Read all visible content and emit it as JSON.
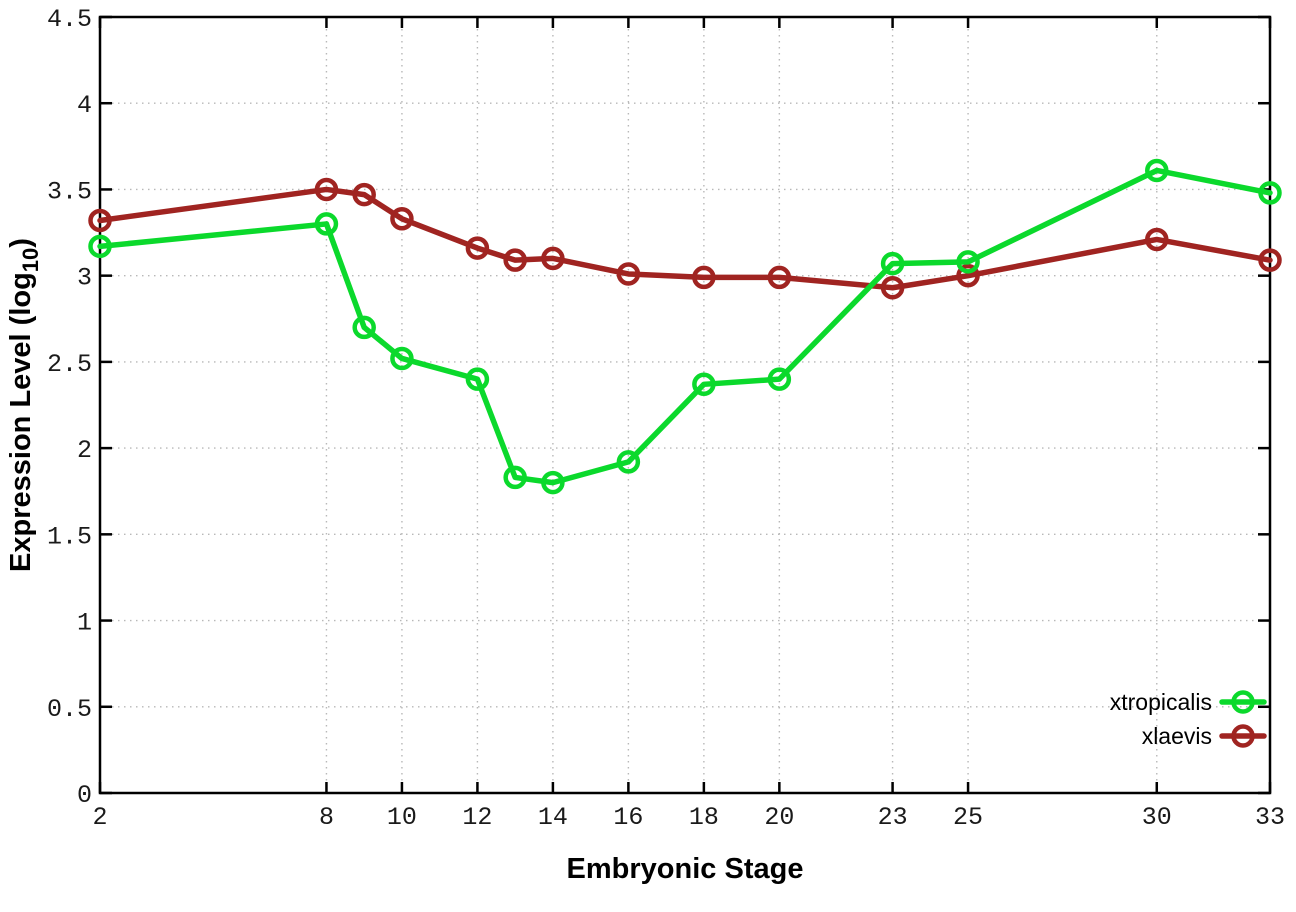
{
  "chart_data": {
    "type": "line",
    "title": "",
    "xlabel": "Embryonic Stage",
    "ylabel": {
      "prefix": "Expression Level (log",
      "subscript": "10",
      "suffix": ")"
    },
    "xlim": [
      2,
      33
    ],
    "ylim": [
      0,
      4.5
    ],
    "xticks": [
      2,
      8,
      10,
      12,
      14,
      16,
      18,
      20,
      23,
      25,
      30,
      33
    ],
    "yticks": [
      0,
      0.5,
      1,
      1.5,
      2,
      2.5,
      3,
      3.5,
      4,
      4.5
    ],
    "ytick_labels": [
      "0",
      "0.5",
      "1",
      "1.5",
      "2",
      "2.5",
      "3",
      "3.5",
      "4",
      "4.5"
    ],
    "grid": true,
    "legend_position": "inside-bottom-right",
    "marker": "open-circle",
    "x": [
      2,
      8,
      9,
      10,
      12,
      13,
      14,
      16,
      18,
      20,
      23,
      25,
      30,
      33
    ],
    "series": [
      {
        "name": "xtropicalis",
        "color": "#0bd92c",
        "values": [
          3.17,
          3.3,
          2.7,
          2.52,
          2.4,
          1.83,
          1.8,
          1.92,
          2.37,
          2.4,
          3.07,
          3.08,
          3.61,
          3.48
        ]
      },
      {
        "name": "xlaevis",
        "color": "#a02421",
        "values": [
          3.32,
          3.5,
          3.47,
          3.33,
          3.16,
          3.09,
          3.1,
          3.01,
          2.99,
          2.99,
          2.93,
          3.0,
          3.21,
          3.09
        ]
      }
    ],
    "colors": {
      "border": "#000000",
      "grid": "#b8b8b8",
      "background": "#ffffff",
      "text": "#000000"
    }
  }
}
